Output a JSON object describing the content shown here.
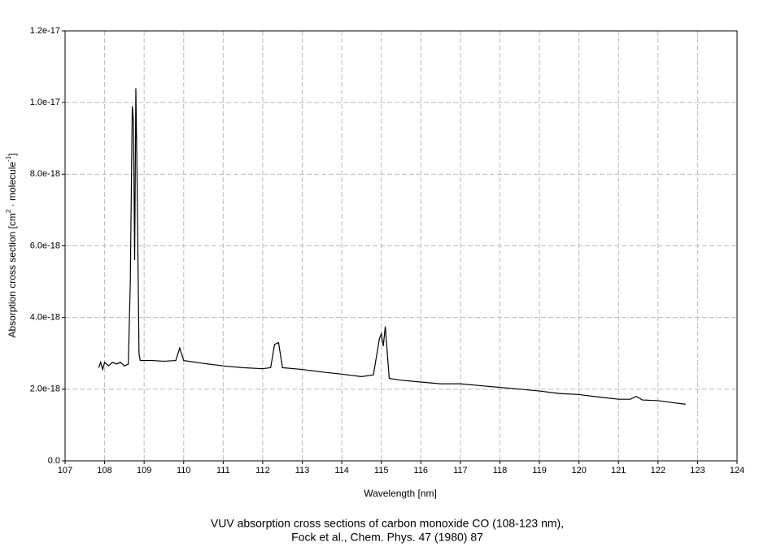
{
  "chart_data": {
    "type": "line",
    "caption": [
      "VUV absorption cross sections of carbon monoxide CO (108-123 nm),",
      "Fock et al., Chem. Phys. 47 (1980) 87"
    ],
    "x_label": "Wavelength [nm]",
    "y_label": [
      "Absorption cross section [cm",
      "2",
      " · molecule",
      "-1",
      "]"
    ],
    "x": [
      107.85,
      107.9,
      107.95,
      108.0,
      108.1,
      108.2,
      108.3,
      108.4,
      108.5,
      108.6,
      108.65,
      108.7,
      108.73,
      108.76,
      108.79,
      108.82,
      108.87,
      108.9,
      109.2,
      109.5,
      109.8,
      109.9,
      110.0,
      110.5,
      111.0,
      111.5,
      112.0,
      112.2,
      112.3,
      112.4,
      112.5,
      113.0,
      113.5,
      114.0,
      114.5,
      114.8,
      114.95,
      115.0,
      115.05,
      115.1,
      115.2,
      115.5,
      116.0,
      116.5,
      117.0,
      117.5,
      118.0,
      118.5,
      119.0,
      119.5,
      120.0,
      120.5,
      121.0,
      121.3,
      121.45,
      121.6,
      122.0,
      122.4,
      122.7
    ],
    "series": [
      {
        "color": "#000000",
        "values": [
          2.6e-18,
          2.75e-18,
          2.55e-18,
          2.75e-18,
          2.65e-18,
          2.75e-18,
          2.7e-18,
          2.75e-18,
          2.65e-18,
          2.7e-18,
          5e-18,
          9.9e-18,
          9.5e-18,
          5.6e-18,
          1.04e-17,
          8e-18,
          3e-18,
          2.8e-18,
          2.8e-18,
          2.78e-18,
          2.8e-18,
          3.15e-18,
          2.8e-18,
          2.72e-18,
          2.65e-18,
          2.6e-18,
          2.57e-18,
          2.6e-18,
          3.25e-18,
          3.3e-18,
          2.6e-18,
          2.55e-18,
          2.48e-18,
          2.42e-18,
          2.35e-18,
          2.4e-18,
          3.4e-18,
          3.55e-18,
          3.2e-18,
          3.75e-18,
          2.3e-18,
          2.25e-18,
          2.2e-18,
          2.15e-18,
          2.15e-18,
          2.1e-18,
          2.05e-18,
          2e-18,
          1.95e-18,
          1.88e-18,
          1.85e-18,
          1.78e-18,
          1.72e-18,
          1.72e-18,
          1.8e-18,
          1.7e-18,
          1.68e-18,
          1.62e-18,
          1.58e-18
        ]
      }
    ],
    "xlim": [
      107,
      124
    ],
    "xticks": [
      107,
      108,
      109,
      110,
      111,
      112,
      113,
      114,
      115,
      116,
      117,
      118,
      119,
      120,
      121,
      122,
      123,
      124
    ],
    "ylim": [
      0,
      1.2e-17
    ],
    "yticks": [
      {
        "value": 0,
        "label": "0.0"
      },
      {
        "value": 2e-18,
        "label": "2.0e-18"
      },
      {
        "value": 4e-18,
        "label": "4.0e-18"
      },
      {
        "value": 6e-18,
        "label": "6.0e-18"
      },
      {
        "value": 8e-18,
        "label": "8.0e-18"
      },
      {
        "value": 1e-17,
        "label": "1.0e-17"
      },
      1.2e-17
    ],
    "grid": true
  }
}
